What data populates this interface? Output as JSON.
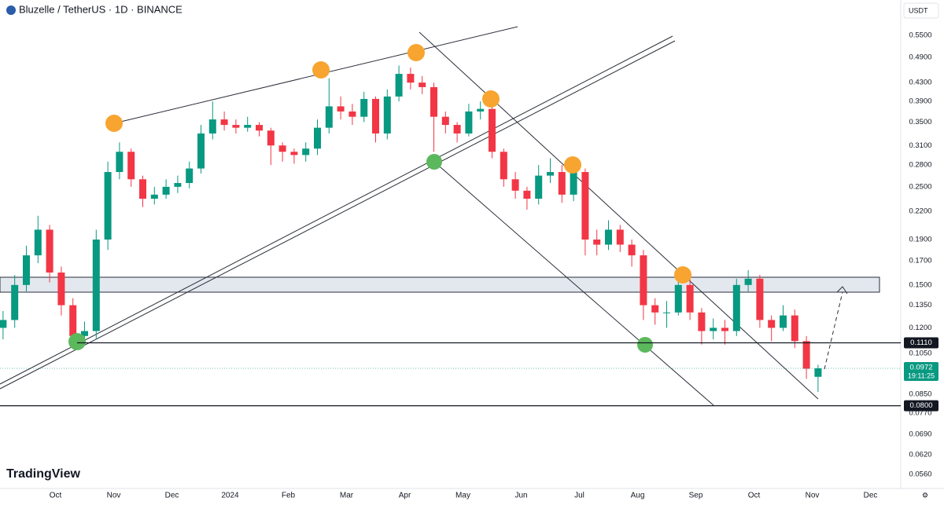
{
  "header": {
    "symbol": "Bluzelle / TetherUS · 1D · BINANCE",
    "currency": "USDT"
  },
  "chart_data": {
    "type": "candlestick",
    "categories": [
      null,
      null,
      null,
      null,
      null,
      "Oct",
      null,
      null,
      null,
      null,
      "Nov",
      null,
      null,
      null,
      null,
      "Dec",
      null,
      null,
      null,
      null,
      "2024",
      null,
      null,
      null,
      null,
      "Feb",
      null,
      null,
      null,
      null,
      "Mar",
      null,
      null,
      null,
      null,
      "Apr",
      null,
      null,
      null,
      null,
      "May",
      null,
      null,
      null,
      null,
      "Jun",
      null,
      null,
      null,
      null,
      "Jul",
      null,
      null,
      null,
      null,
      "Aug",
      null,
      null,
      null,
      null,
      "Sep",
      null,
      null,
      null,
      null,
      "Oct",
      null,
      null,
      null,
      null,
      "Nov",
      null,
      null,
      null,
      null,
      "Dec"
    ],
    "open": [
      0.12,
      0.125,
      0.15,
      0.175,
      0.2,
      0.16,
      0.135,
      0.115,
      0.118,
      0.19,
      0.27,
      0.3,
      0.26,
      0.235,
      0.24,
      0.25,
      0.255,
      0.275,
      0.33,
      0.355,
      0.345,
      0.34,
      0.345,
      0.335,
      0.31,
      0.3,
      0.295,
      0.305,
      0.34,
      0.38,
      0.37,
      0.36,
      0.395,
      0.33,
      0.4,
      0.45,
      0.43,
      0.42,
      0.36,
      0.345,
      0.33,
      0.37,
      0.375,
      0.3,
      0.26,
      0.245,
      0.235,
      0.265,
      0.27,
      0.24,
      0.27,
      0.19,
      0.185,
      0.2,
      0.185,
      0.175,
      0.135,
      0.13,
      0.13,
      0.15,
      0.13,
      0.118,
      0.12,
      0.118,
      0.15,
      0.155,
      0.125,
      0.12,
      0.128,
      0.112,
      0.093,
      null,
      null,
      null,
      null,
      null
    ],
    "high": [
      0.131,
      0.158,
      0.184,
      0.215,
      0.205,
      0.165,
      0.14,
      0.124,
      0.2,
      0.285,
      0.315,
      0.305,
      0.265,
      0.25,
      0.26,
      0.265,
      0.285,
      0.345,
      0.39,
      0.37,
      0.355,
      0.36,
      0.35,
      0.34,
      0.315,
      0.305,
      0.315,
      0.355,
      0.44,
      0.4,
      0.385,
      0.41,
      0.4,
      0.415,
      0.47,
      0.465,
      0.445,
      0.43,
      0.37,
      0.35,
      0.385,
      0.39,
      0.385,
      0.305,
      0.27,
      0.25,
      0.28,
      0.29,
      0.28,
      0.28,
      0.275,
      0.2,
      0.21,
      0.205,
      0.19,
      0.18,
      0.14,
      0.138,
      0.16,
      0.155,
      0.133,
      0.126,
      0.125,
      0.155,
      0.162,
      0.158,
      0.128,
      0.135,
      0.132,
      0.115,
      0.099,
      null,
      null,
      null,
      null,
      null
    ],
    "low": [
      0.113,
      0.12,
      0.145,
      0.168,
      0.152,
      0.128,
      0.11,
      0.11,
      0.113,
      0.18,
      0.26,
      0.25,
      0.225,
      0.228,
      0.235,
      0.242,
      0.248,
      0.268,
      0.32,
      0.335,
      0.33,
      0.333,
      0.325,
      0.28,
      0.285,
      0.282,
      0.285,
      0.295,
      0.33,
      0.355,
      0.345,
      0.35,
      0.315,
      0.32,
      0.39,
      0.415,
      0.405,
      0.3,
      0.33,
      0.315,
      0.325,
      0.355,
      0.29,
      0.25,
      0.235,
      0.222,
      0.228,
      0.255,
      0.23,
      0.232,
      0.175,
      0.175,
      0.18,
      0.178,
      0.165,
      0.125,
      0.122,
      0.12,
      0.128,
      0.125,
      0.11,
      0.113,
      0.11,
      0.115,
      0.145,
      0.12,
      0.112,
      0.118,
      0.108,
      0.092,
      0.086,
      null,
      null,
      null,
      null,
      null
    ],
    "close": [
      0.125,
      0.15,
      0.175,
      0.2,
      0.16,
      0.135,
      0.115,
      0.118,
      0.19,
      0.27,
      0.3,
      0.26,
      0.235,
      0.24,
      0.25,
      0.255,
      0.275,
      0.33,
      0.355,
      0.345,
      0.34,
      0.345,
      0.335,
      0.31,
      0.3,
      0.295,
      0.305,
      0.34,
      0.38,
      0.37,
      0.36,
      0.395,
      0.33,
      0.4,
      0.45,
      0.43,
      0.42,
      0.36,
      0.345,
      0.33,
      0.37,
      0.375,
      0.3,
      0.26,
      0.245,
      0.235,
      0.265,
      0.27,
      0.24,
      0.27,
      0.19,
      0.185,
      0.2,
      0.185,
      0.175,
      0.135,
      0.13,
      0.13,
      0.15,
      0.13,
      0.118,
      0.12,
      0.118,
      0.15,
      0.155,
      0.125,
      0.12,
      0.128,
      0.112,
      0.097,
      0.0972,
      null,
      null,
      null,
      null,
      null
    ],
    "up_color": "#089981",
    "down_color": "#f23645",
    "log_scale": true,
    "ylim": [
      0.052,
      0.661
    ],
    "yticks": [
      {
        "value": 0.55,
        "label": "0.5500"
      },
      {
        "value": 0.49,
        "label": "0.4900"
      },
      {
        "value": 0.43,
        "label": "0.4300"
      },
      {
        "value": 0.39,
        "label": "0.3900"
      },
      {
        "value": 0.35,
        "label": "0.3500"
      },
      {
        "value": 0.31,
        "label": "0.3100"
      },
      {
        "value": 0.28,
        "label": "0.2800"
      },
      {
        "value": 0.25,
        "label": "0.2500"
      },
      {
        "value": 0.22,
        "label": "0.2200"
      },
      {
        "value": 0.19,
        "label": "0.1900"
      },
      {
        "value": 0.17,
        "label": "0.1700"
      },
      {
        "value": 0.15,
        "label": "0.1500"
      },
      {
        "value": 0.135,
        "label": "0.1350"
      },
      {
        "value": 0.12,
        "label": "0.1200"
      },
      {
        "value": 0.105,
        "label": "0.1050"
      },
      {
        "value": 0.085,
        "label": "0.0850"
      },
      {
        "value": 0.077,
        "label": "0.0770"
      },
      {
        "value": 0.069,
        "label": "0.0690"
      },
      {
        "value": 0.062,
        "label": "0.0620"
      },
      {
        "value": 0.056,
        "label": "0.0560"
      }
    ],
    "price_lines": [
      {
        "value": 0.111,
        "label": "0.1110"
      },
      {
        "value": 0.08,
        "label": "0.0800"
      }
    ],
    "last_price": {
      "value": 0.0972,
      "label": "0.0972",
      "countdown": "19:11:25"
    },
    "watermark": "TradingView"
  }
}
